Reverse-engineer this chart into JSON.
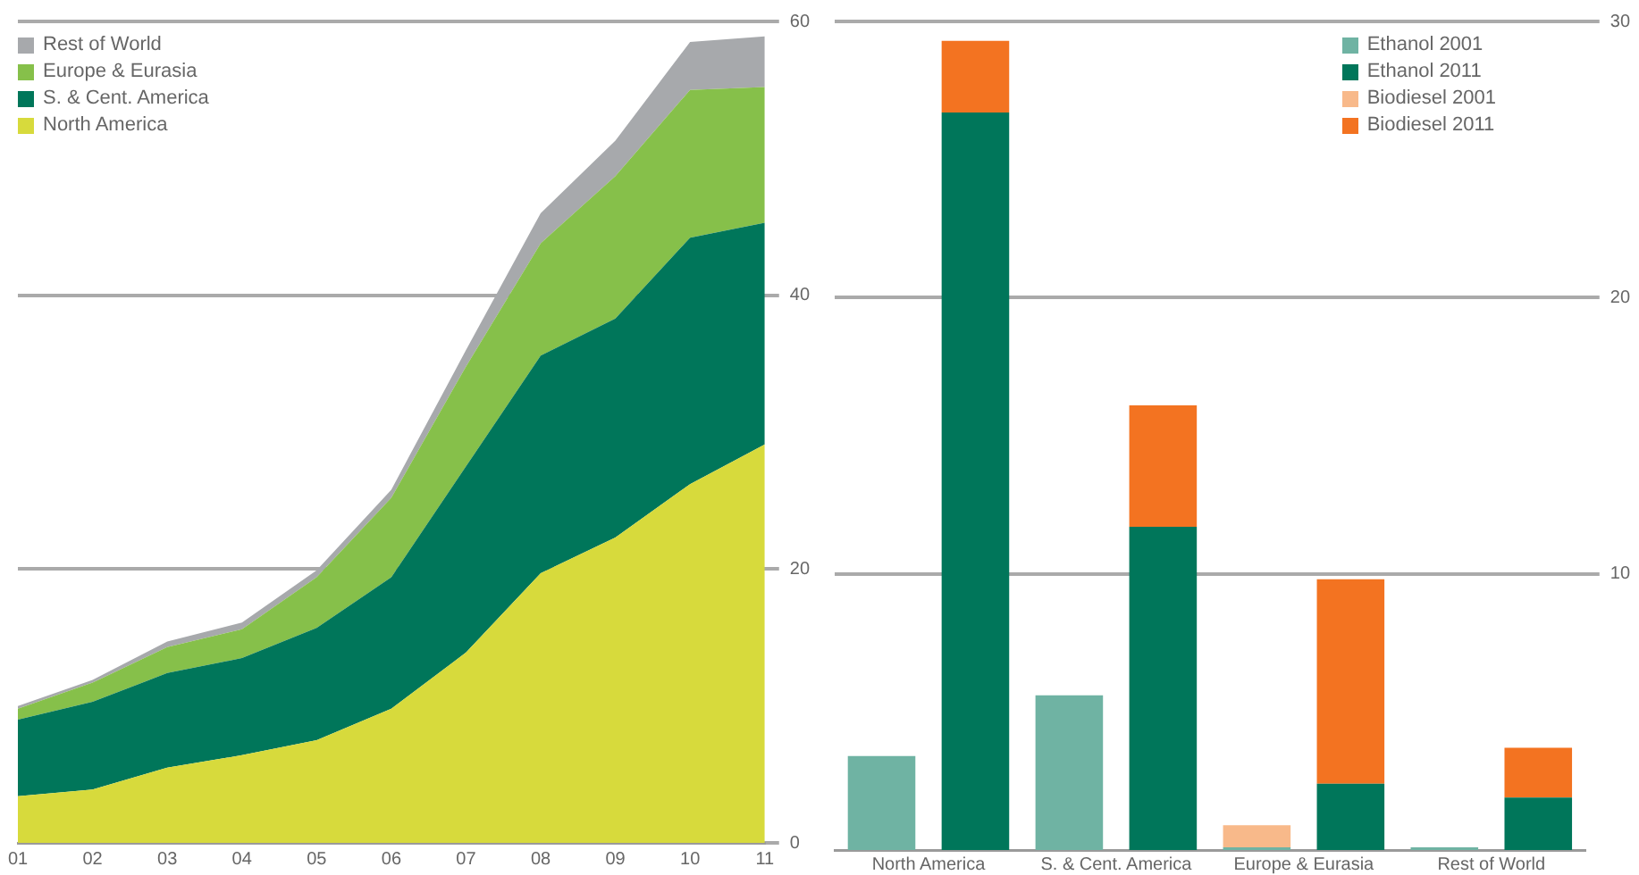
{
  "chart_data": [
    {
      "type": "area",
      "stacked": true,
      "categories": [
        "01",
        "02",
        "03",
        "04",
        "05",
        "06",
        "07",
        "08",
        "09",
        "10",
        "11"
      ],
      "series": [
        {
          "name": "North America",
          "color": "#d7da3c",
          "values": [
            3.4,
            3.9,
            5.5,
            6.4,
            7.5,
            9.8,
            13.9,
            19.7,
            22.3,
            26.2,
            29.1
          ]
        },
        {
          "name": "S. & Cent. America",
          "color": "#00765a",
          "values": [
            5.6,
            6.4,
            6.9,
            7.1,
            8.2,
            9.6,
            13.6,
            15.9,
            16.0,
            18.0,
            16.2
          ]
        },
        {
          "name": "Europe & Eurasia",
          "color": "#86c04a",
          "values": [
            0.8,
            1.4,
            1.9,
            2.1,
            3.7,
            5.8,
            7.3,
            8.2,
            10.4,
            10.8,
            9.9
          ]
        },
        {
          "name": "Rest of World",
          "color": "#a7a9ac",
          "values": [
            0.2,
            0.2,
            0.4,
            0.5,
            0.5,
            0.6,
            1.2,
            2.2,
            2.6,
            3.5,
            3.7
          ]
        }
      ],
      "ylim": [
        0,
        60
      ],
      "yticks": [
        0,
        20,
        40,
        60
      ],
      "grid": "y",
      "legend": "top left",
      "marker": "none"
    },
    {
      "type": "bar",
      "stacked": true,
      "categories": [
        "North America",
        null,
        "S. & Cent. America",
        null,
        "Europe & Eurasia",
        null,
        "Rest of World",
        null
      ],
      "series": [
        {
          "name": "Ethanol 2001",
          "color": "#6fb3a3",
          "values": [
            3.4,
            null,
            5.6,
            null,
            0.1,
            null,
            0.1,
            null
          ]
        },
        {
          "name": "Ethanol 2011",
          "color": "#00765a",
          "values": [
            null,
            26.7,
            null,
            11.7,
            null,
            2.4,
            null,
            1.9
          ]
        },
        {
          "name": "Biodiesel 2001",
          "color": "#f8b98a",
          "values": [
            null,
            null,
            null,
            null,
            0.8,
            null,
            null,
            null
          ]
        },
        {
          "name": "Biodiesel 2011",
          "color": "#f37321",
          "values": [
            null,
            2.6,
            null,
            4.4,
            null,
            7.4,
            null,
            1.8
          ]
        }
      ],
      "ylim": [
        0,
        30
      ],
      "yticks": [
        10,
        20,
        30
      ],
      "grid": "y",
      "legend": "top right"
    }
  ]
}
